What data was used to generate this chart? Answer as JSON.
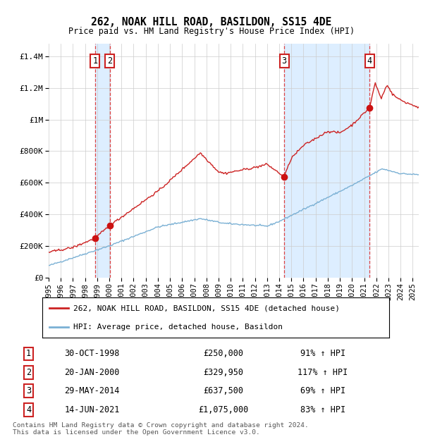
{
  "title": "262, NOAK HILL ROAD, BASILDON, SS15 4DE",
  "subtitle": "Price paid vs. HM Land Registry's House Price Index (HPI)",
  "legend_line1": "262, NOAK HILL ROAD, BASILDON, SS15 4DE (detached house)",
  "legend_line2": "HPI: Average price, detached house, Basildon",
  "footer1": "Contains HM Land Registry data © Crown copyright and database right 2024.",
  "footer2": "This data is licensed under the Open Government Licence v3.0.",
  "transactions": [
    {
      "num": 1,
      "date": "30-OCT-1998",
      "year": 1998.83,
      "price": 250000,
      "pct": "91%",
      "dir": "↑"
    },
    {
      "num": 2,
      "date": "20-JAN-2000",
      "year": 2000.05,
      "price": 329950,
      "pct": "117%",
      "dir": "↑"
    },
    {
      "num": 3,
      "date": "29-MAY-2014",
      "year": 2014.41,
      "price": 637500,
      "pct": "69%",
      "dir": "↑"
    },
    {
      "num": 4,
      "date": "14-JUN-2021",
      "year": 2021.45,
      "price": 1075000,
      "pct": "83%",
      "dir": "↑"
    }
  ],
  "hpi_color": "#7ab0d4",
  "price_color": "#cc2222",
  "dot_color": "#cc1111",
  "vline_color": "#dd4444",
  "shade_color": "#ddeeff",
  "grid_color": "#cccccc",
  "bg_color": "#ffffff",
  "ylim": [
    0,
    1480000
  ],
  "xlim": [
    1995.0,
    2025.5
  ],
  "yticks": [
    0,
    200000,
    400000,
    600000,
    800000,
    1000000,
    1200000,
    1400000
  ],
  "ytick_labels": [
    "£0",
    "£200K",
    "£400K",
    "£600K",
    "£800K",
    "£1M",
    "£1.2M",
    "£1.4M"
  ]
}
